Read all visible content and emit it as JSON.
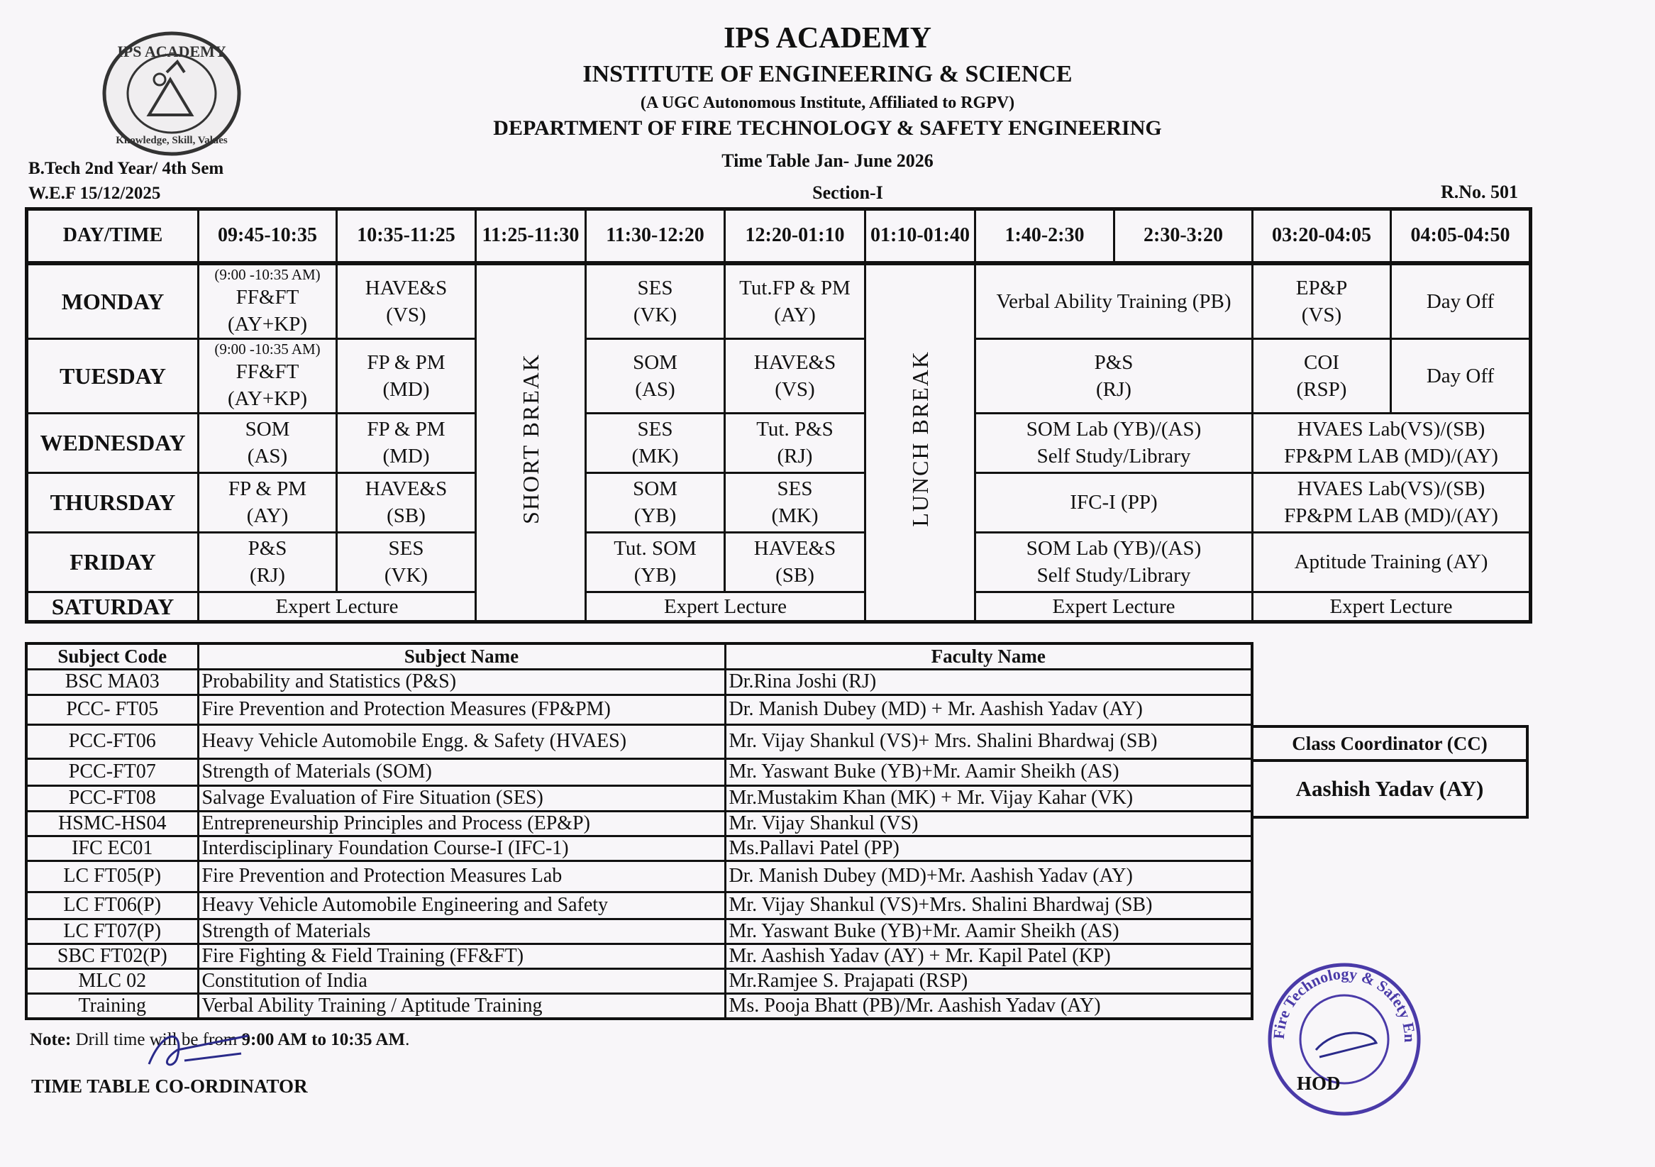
{
  "header": {
    "logo_text": "IPS ACADEMY",
    "logo_motto": "Knowledge, Skill, Values",
    "title": "IPS ACADEMY",
    "institute": "INSTITUTE OF ENGINEERING & SCIENCE",
    "affiliation": "(A UGC Autonomous Institute, Affiliated to RGPV)",
    "department": "DEPARTMENT OF FIRE TECHNOLOGY & SAFETY ENGINEERING",
    "timetable_title": "Time Table Jan- June 2026",
    "course": "B.Tech 2nd Year/ 4th Sem",
    "wef": "W.E.F 15/12/2025",
    "section": "Section-I",
    "room": "R.No. 501"
  },
  "timetable": {
    "columns": [
      "DAY/TIME",
      "09:45-10:35",
      "10:35-11:25",
      "11:25-11:30",
      "11:30-12:20",
      "12:20-01:10",
      "01:10-01:40",
      "1:40-2:30",
      "2:30-3:20",
      "03:20-04:05",
      "04:05-04:50"
    ],
    "short_break": "SHORT BREAK",
    "lunch_break": "LUNCH BREAK",
    "days": {
      "monday": {
        "day": "MONDAY",
        "s1_note": "(9:00 -10:35 AM)",
        "s1a": "FF&FT",
        "s1b": "(AY+KP)",
        "s2a": "HAVE&S",
        "s2b": "(VS)",
        "s3a": "SES",
        "s3b": "(VK)",
        "s4a": "Tut.FP & PM",
        "s4b": "(AY)",
        "s5": "Verbal Ability Training (PB)",
        "s6a": "EP&P",
        "s6b": "(VS)",
        "s7": "Day Off"
      },
      "tuesday": {
        "day": "TUESDAY",
        "s1_note": "(9:00 -10:35 AM)",
        "s1a": "FF&FT",
        "s1b": "(AY+KP)",
        "s2a": "FP & PM",
        "s2b": "(MD)",
        "s3a": "SOM",
        "s3b": "(AS)",
        "s4a": "HAVE&S",
        "s4b": "(VS)",
        "s5a": "P&S",
        "s5b": "(RJ)",
        "s6a": "COI",
        "s6b": "(RSP)",
        "s7": "Day Off"
      },
      "wednesday": {
        "day": "WEDNESDAY",
        "s1a": "SOM",
        "s1b": "(AS)",
        "s2a": "FP & PM",
        "s2b": "(MD)",
        "s3a": "SES",
        "s3b": "(MK)",
        "s4a": "Tut. P&S",
        "s4b": "(RJ)",
        "s5a": "SOM Lab (YB)/(AS)",
        "s5b": "Self Study/Library",
        "s6a": "HVAES Lab(VS)/(SB)",
        "s6b": "FP&PM LAB (MD)/(AY)"
      },
      "thursday": {
        "day": "THURSDAY",
        "s1a": "FP & PM",
        "s1b": "(AY)",
        "s2a": "HAVE&S",
        "s2b": "(SB)",
        "s3a": "SOM",
        "s3b": "(YB)",
        "s4a": "SES",
        "s4b": "(MK)",
        "s5": "IFC-I (PP)",
        "s6a": "HVAES Lab(VS)/(SB)",
        "s6b": "FP&PM LAB (MD)/(AY)"
      },
      "friday": {
        "day": "FRIDAY",
        "s1a": "P&S",
        "s1b": "(RJ)",
        "s2a": "SES",
        "s2b": "(VK)",
        "s3a": "Tut. SOM",
        "s3b": "(YB)",
        "s4a": "HAVE&S",
        "s4b": "(SB)",
        "s5a": "SOM Lab (YB)/(AS)",
        "s5b": "Self Study/Library",
        "s6": "Aptitude Training (AY)"
      },
      "saturday": {
        "day": "SATURDAY",
        "s1": "Expert Lecture",
        "s2": "Expert Lecture",
        "s3": "Expert Lecture",
        "s4": "Expert Lecture"
      }
    }
  },
  "subjects": {
    "headers": [
      "Subject Code",
      "Subject Name",
      "Faculty Name"
    ],
    "rows": [
      [
        "BSC MA03",
        "Probability and Statistics (P&S)",
        "Dr.Rina Joshi (RJ)"
      ],
      [
        "PCC- FT05",
        "Fire Prevention and Protection Measures (FP&PM)",
        "Dr. Manish Dubey (MD) + Mr. Aashish Yadav (AY)"
      ],
      [
        "PCC-FT06",
        "Heavy Vehicle Automobile Engg. & Safety (HVAES)",
        "Mr. Vijay Shankul (VS)+ Mrs. Shalini Bhardwaj (SB)"
      ],
      [
        "PCC-FT07",
        "Strength of Materials (SOM)",
        "Mr. Yaswant Buke (YB)+Mr. Aamir Sheikh (AS)"
      ],
      [
        "PCC-FT08",
        "Salvage Evaluation of Fire Situation (SES)",
        "Mr.Mustakim Khan  (MK) + Mr. Vijay Kahar (VK)"
      ],
      [
        "HSMC-HS04",
        "Entrepreneurship Principles and Process (EP&P)",
        "Mr. Vijay Shankul (VS)"
      ],
      [
        "IFC EC01",
        "Interdisciplinary Foundation Course-I (IFC-1)",
        "Ms.Pallavi Patel (PP)"
      ],
      [
        "LC FT05(P)",
        "Fire Prevention and Protection Measures Lab",
        "Dr. Manish Dubey (MD)+Mr. Aashish Yadav (AY)"
      ],
      [
        "LC FT06(P)",
        "Heavy Vehicle Automobile Engineering and Safety",
        "Mr. Vijay Shankul (VS)+Mrs. Shalini Bhardwaj (SB)"
      ],
      [
        "LC FT07(P)",
        "Strength of Materials",
        "Mr. Yaswant Buke (YB)+Mr. Aamir Sheikh (AS)"
      ],
      [
        "SBC FT02(P)",
        "Fire Fighting & Field Training (FF&FT)",
        "Mr. Aashish Yadav (AY) + Mr. Kapil Patel (KP)"
      ],
      [
        "MLC 02",
        "Constitution of India",
        "Mr.Ramjee S. Prajapati (RSP)"
      ],
      [
        "Training",
        "Verbal Ability Training / Aptitude Training",
        "Ms. Pooja Bhatt (PB)/Mr. Aashish Yadav (AY)"
      ]
    ]
  },
  "coordinator": {
    "label": "Class Coordinator (CC)",
    "name": "Aashish Yadav (AY)"
  },
  "footer": {
    "note_label": "Note:",
    "note_pre": " Drill time will be from ",
    "note_time": "9:00 AM to 10:35 AM",
    "note_post": ".",
    "signatory": "TIME TABLE CO-ORDINATOR",
    "hod": "HOD",
    "stamp_text": "Deptt. of Fire Technology & Safety Engg. IES IPSA"
  },
  "colors": {
    "ink": "#111111",
    "stamp": "#4a3aa8",
    "logo": "#333333"
  }
}
